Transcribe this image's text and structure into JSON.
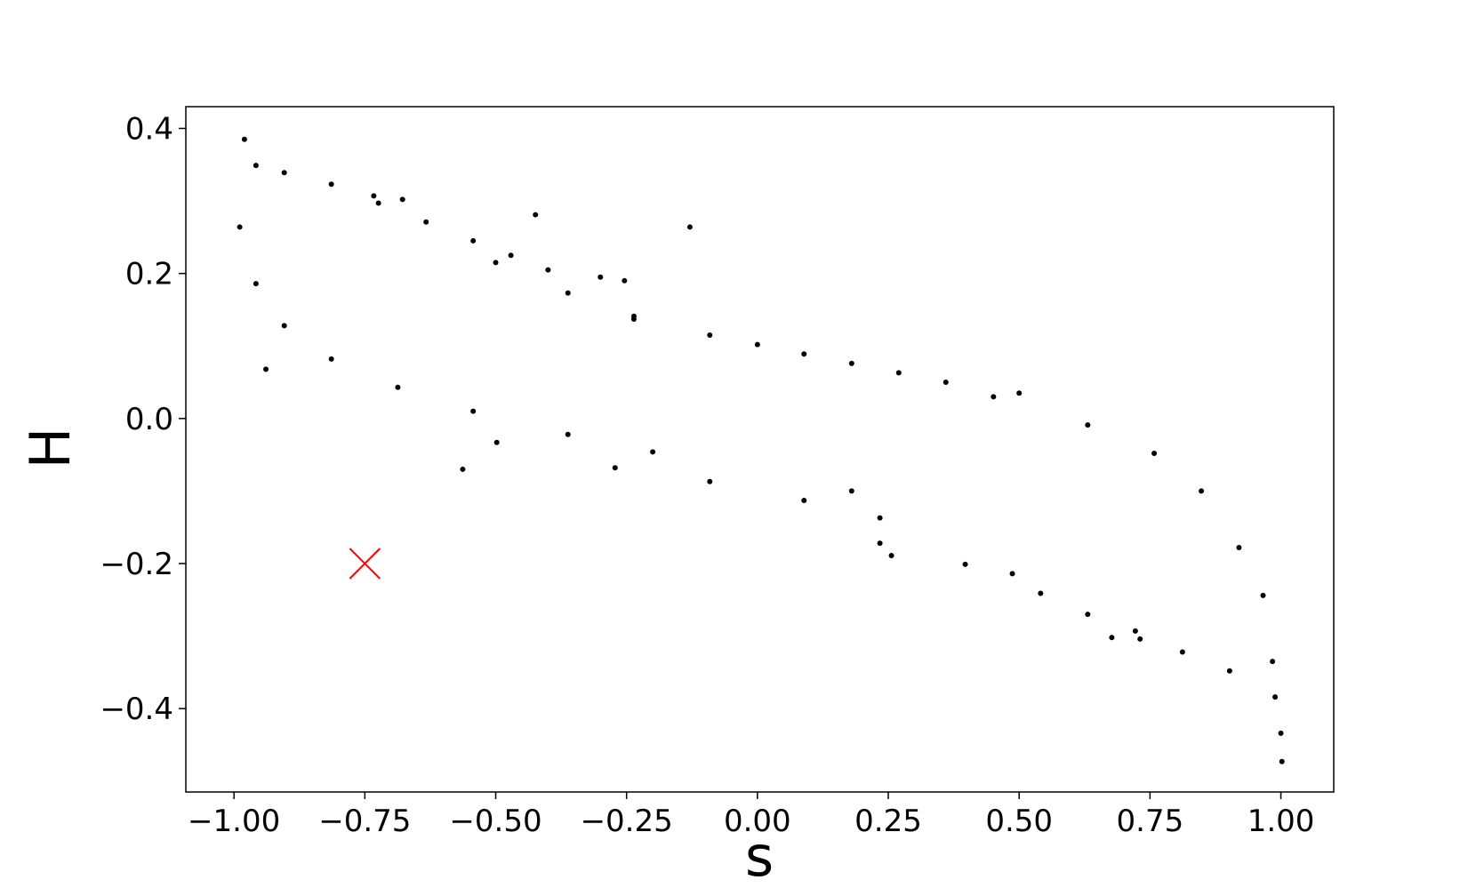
{
  "chart_data": {
    "type": "scatter",
    "xlabel": "s",
    "ylabel": "H",
    "xlim": [
      -1.092,
      1.101
    ],
    "ylim": [
      -0.515,
      0.43
    ],
    "xticks": [
      {
        "value": -1,
        "label": "−1.00"
      },
      {
        "value": -0.75,
        "label": "−0.75"
      },
      {
        "value": -0.5,
        "label": "−0.50"
      },
      {
        "value": -0.25,
        "label": "−0.25"
      },
      {
        "value": 0,
        "label": "0.00"
      },
      0.25,
      {
        "value": 0.5,
        "label": "0.50"
      },
      0.75,
      {
        "value": 1,
        "label": "1.00"
      }
    ],
    "yticks": [
      {
        "value": -0.4,
        "label": "−0.4"
      },
      {
        "value": -0.2,
        "label": "−0.2"
      },
      {
        "value": 0,
        "label": "0.0"
      },
      0.2,
      0.4
    ],
    "series": [
      {
        "color": "#000000",
        "marker": "dot",
        "x": [
          -0.98,
          -0.958,
          -0.904,
          -0.814,
          -0.733,
          -0.678,
          -0.724,
          -0.633,
          -0.543,
          -0.471,
          -0.5,
          -0.4,
          -0.3,
          -0.254,
          -0.362,
          -0.236,
          -0.091,
          0.089,
          0.27,
          0.451,
          0.631,
          0.758,
          0.848,
          0.92,
          0.966,
          0.984,
          0.989,
          0.902,
          0.812,
          0.731,
          0.677,
          0.722,
          0.631,
          0.541,
          0.487,
          0.397,
          0.256,
          0.234,
          0.089,
          -0.091,
          -0.272,
          -0.498,
          -0.989,
          -0.958,
          -0.904,
          -0.814,
          -0.687,
          -0.543,
          -0.362,
          -0.2,
          -0.236,
          0.0,
          0.18,
          0.36,
          0.5,
          0.18,
          0.234,
          -0.424,
          -0.129,
          -0.939,
          -0.563,
          1.0,
          1.002
        ],
        "values": [
          0.385,
          0.349,
          0.339,
          0.323,
          0.307,
          0.302,
          0.297,
          0.271,
          0.245,
          0.225,
          0.215,
          0.205,
          0.195,
          0.19,
          0.173,
          0.141,
          0.115,
          0.089,
          0.063,
          0.03,
          -0.009,
          -0.048,
          -0.1,
          -0.178,
          -0.244,
          -0.335,
          -0.384,
          -0.348,
          -0.322,
          -0.304,
          -0.302,
          -0.293,
          -0.27,
          -0.241,
          -0.214,
          -0.201,
          -0.189,
          -0.172,
          -0.113,
          -0.087,
          -0.068,
          -0.033,
          0.264,
          0.186,
          0.128,
          0.082,
          0.043,
          0.01,
          -0.022,
          -0.046,
          0.137,
          0.102,
          0.076,
          0.05,
          0.035,
          -0.1,
          -0.137,
          0.281,
          0.264,
          0.068,
          -0.07,
          -0.434,
          -0.473
        ]
      },
      {
        "color": "#ff0000",
        "marker": "x",
        "x": [
          -0.75
        ],
        "values": [
          -0.2
        ]
      }
    ]
  }
}
